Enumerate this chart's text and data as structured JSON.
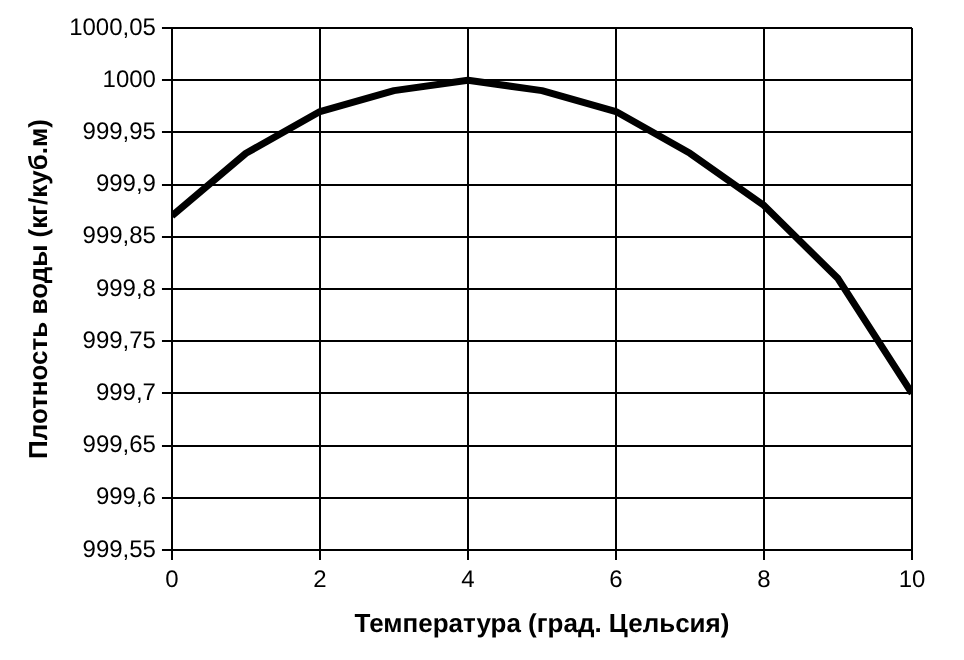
{
  "chart_data": {
    "type": "line",
    "xlabel": "Температура (град. Цельсия)",
    "ylabel": "Плотность воды (кг/куб.м)",
    "x": [
      0,
      1,
      2,
      3,
      4,
      5,
      6,
      7,
      8,
      9,
      10
    ],
    "series": [
      {
        "color": "#000000",
        "values": [
          999.87,
          999.93,
          999.97,
          999.99,
          1000.0,
          999.99,
          999.97,
          999.93,
          999.88,
          999.81,
          999.7
        ]
      }
    ],
    "xlim": [
      0,
      10
    ],
    "xticks": [
      0,
      2,
      4,
      6,
      8,
      10
    ],
    "ylim": [
      999.55,
      1000.05
    ],
    "yticks": [
      {
        "value": 999.55,
        "label": "999,55"
      },
      {
        "value": 999.6,
        "label": "999,6"
      },
      {
        "value": 999.65,
        "label": "999,65"
      },
      {
        "value": 999.7,
        "label": "999,7"
      },
      {
        "value": 999.75,
        "label": "999,75"
      },
      {
        "value": 999.8,
        "label": "999,8"
      },
      {
        "value": 999.85,
        "label": "999,85"
      },
      {
        "value": 999.9,
        "label": "999,9"
      },
      {
        "value": 999.95,
        "label": "999,95"
      },
      {
        "value": 1000,
        "label": "1000"
      },
      {
        "value": 1000.05,
        "label": "1000,05"
      }
    ],
    "grid": true,
    "legend": false,
    "marker": "none",
    "line_style": "solid"
  }
}
